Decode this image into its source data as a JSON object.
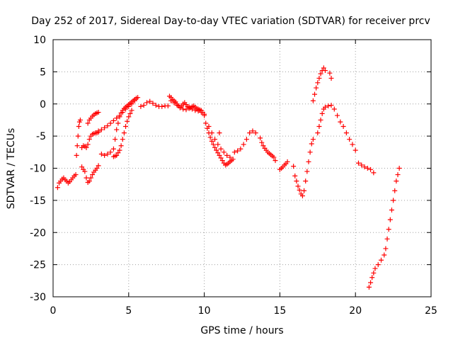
{
  "chart_data": {
    "type": "scatter",
    "title": "Day 252 of 2017, Sidereal Day-to-day VTEC variation (SDTVAR) for receiver prcv",
    "xlabel": "GPS time / hours",
    "ylabel": "SDTVAR / TECUs",
    "xlim": [
      0,
      25
    ],
    "ylim": [
      -30,
      10
    ],
    "xticks": [
      0,
      5,
      10,
      15,
      20,
      25
    ],
    "yticks": [
      -30,
      -25,
      -20,
      -15,
      -10,
      -5,
      0,
      5,
      10
    ],
    "grid": true,
    "marker": "plus",
    "series_color": "#ff0000",
    "series": [
      {
        "name": "seg1",
        "x": [
          0.3,
          0.4,
          0.5,
          0.6,
          0.7,
          0.8,
          0.9,
          1.0,
          1.1,
          1.2,
          1.3,
          1.4,
          1.5
        ],
        "y": [
          -13,
          -12.3,
          -12,
          -11.7,
          -11.5,
          -11.8,
          -12,
          -12.3,
          -12.1,
          -11.8,
          -11.5,
          -11.2,
          -11
        ]
      },
      {
        "name": "seg2",
        "x": [
          1.55,
          1.6,
          1.65,
          1.7,
          1.75,
          1.8,
          1.9,
          2.0,
          2.1,
          2.2,
          2.3,
          2.4,
          2.5,
          2.6,
          2.7,
          2.8,
          2.9,
          3.0
        ],
        "y": [
          -8,
          -6.5,
          -5,
          -3.5,
          -2.8,
          -2.5,
          -6.8,
          -6.5,
          -6.6,
          -6.8,
          -6.3,
          -5.5,
          -5,
          -4.7,
          -4.6,
          -4.5,
          -4.5,
          -4.4
        ]
      },
      {
        "name": "seg3",
        "x": [
          2.3,
          2.4,
          2.5,
          2.6,
          2.7,
          2.8,
          2.9,
          3.0
        ],
        "y": [
          -3,
          -2.5,
          -2.2,
          -1.9,
          -1.7,
          -1.5,
          -1.4,
          -1.3
        ]
      },
      {
        "name": "seg4",
        "x": [
          1.9,
          2.0,
          2.1,
          2.2,
          2.3,
          2.4,
          2.5,
          2.6,
          2.7,
          2.8,
          2.9,
          3.0
        ],
        "y": [
          -9.8,
          -10.2,
          -10.5,
          -11.5,
          -12.2,
          -12,
          -11.5,
          -11,
          -10.6,
          -10.3,
          -10,
          -9.6
        ]
      },
      {
        "name": "seg5",
        "x": [
          3.0,
          3.2,
          3.4,
          3.6,
          3.8,
          4.0,
          4.2,
          4.4,
          4.6,
          4.8,
          5.0,
          5.2,
          5.4
        ],
        "y": [
          -4.2,
          -4,
          -3.7,
          -3.4,
          -3,
          -2.6,
          -2.2,
          -1.8,
          -1.3,
          -0.8,
          -0.4,
          0,
          0.5
        ]
      },
      {
        "name": "seg6",
        "x": [
          3.2,
          3.4,
          3.6,
          3.8,
          4.0,
          4.1,
          4.2,
          4.3,
          4.4,
          4.5,
          4.6,
          4.7,
          4.8,
          4.9,
          5.0,
          5.1,
          5.2,
          5.3,
          5.4,
          5.5,
          5.6
        ],
        "y": [
          -7.8,
          -8,
          -7.8,
          -7.5,
          -7,
          -5.5,
          -4,
          -3,
          -2,
          -1.4,
          -1,
          -0.7,
          -0.5,
          -0.3,
          -0.1,
          0.1,
          0.3,
          0.5,
          0.7,
          0.9,
          1
        ]
      },
      {
        "name": "seg7",
        "x": [
          4.0,
          4.1,
          4.2,
          4.3,
          4.4,
          4.5,
          4.6,
          4.7,
          4.8,
          4.9,
          5.0,
          5.1,
          5.2
        ],
        "y": [
          -8.2,
          -8.1,
          -8,
          -7.6,
          -7.2,
          -6.5,
          -5.5,
          -4.5,
          -3.5,
          -2.7,
          -2,
          -1.5,
          -1
        ]
      },
      {
        "name": "seg8",
        "x": [
          5.8,
          6.0,
          6.2,
          6.4,
          6.6,
          6.8,
          7.0,
          7.2,
          7.4,
          7.6
        ],
        "y": [
          -0.4,
          -0.2,
          0.2,
          0.4,
          0.1,
          -0.2,
          -0.4,
          -0.4,
          -0.3,
          -0.3
        ]
      },
      {
        "name": "seg9",
        "x": [
          7.7,
          7.8,
          7.9,
          8.0,
          8.1,
          8.2,
          8.3,
          8.4,
          8.5,
          8.6,
          8.7,
          8.8,
          8.9,
          9.0,
          9.1,
          9.2,
          9.3,
          9.4,
          9.5,
          9.6,
          9.7,
          9.8,
          9.9,
          10.0
        ],
        "y": [
          1.2,
          1,
          0.7,
          0.5,
          0.3,
          0,
          -0.3,
          -0.5,
          -0.3,
          0,
          0.2,
          -0.1,
          -0.4,
          -0.5,
          -0.6,
          -0.4,
          -0.3,
          -0.5,
          -0.7,
          -0.8,
          -0.9,
          -1,
          -1.3,
          -1.6
        ]
      },
      {
        "name": "seg10",
        "x": [
          7.8,
          8.0,
          8.2,
          8.4,
          8.6,
          8.8,
          9.0,
          9.2,
          9.4,
          9.6,
          9.8,
          10.0
        ],
        "y": [
          0.5,
          0.2,
          -0.2,
          -0.6,
          -0.8,
          -0.9,
          -0.7,
          -0.8,
          -1,
          -1.1,
          -1.3,
          -1.8
        ]
      },
      {
        "name": "seg11",
        "x": [
          10.1,
          10.2,
          10.3,
          10.4,
          10.5,
          10.6,
          10.7,
          10.8,
          10.9,
          11.0,
          11.1,
          11.2,
          11.3,
          11.4,
          11.5,
          11.6,
          11.7,
          11.8
        ],
        "y": [
          -3,
          -3.8,
          -4.5,
          -5.2,
          -5.8,
          -6.3,
          -6.8,
          -7.2,
          -7.6,
          -8,
          -8.4,
          -8.8,
          -9.2,
          -9.5,
          -9.4,
          -9.2,
          -9,
          -8.8
        ]
      },
      {
        "name": "seg12",
        "x": [
          10.3,
          10.5,
          10.7,
          10.9,
          11.1,
          11.3,
          11.5,
          11.7,
          11.9
        ],
        "y": [
          -3.5,
          -4.5,
          -5.5,
          -6.3,
          -7,
          -7.5,
          -8,
          -8.3,
          -8.6
        ]
      },
      {
        "name": "seg13",
        "x": [
          11.0,
          12.0,
          12.2,
          12.4,
          12.6,
          12.8,
          13.0,
          13.2,
          13.4
        ],
        "y": [
          -4.5,
          -7.5,
          -7.3,
          -7,
          -6.3,
          -5.5,
          -4.5,
          -4.2,
          -4.5
        ]
      },
      {
        "name": "seg14",
        "x": [
          13.7,
          13.8,
          13.9,
          14.0,
          14.1,
          14.2,
          14.3,
          14.4,
          14.5,
          14.6
        ],
        "y": [
          -5.3,
          -6,
          -6.5,
          -6.9,
          -7.2,
          -7.5,
          -7.7,
          -7.9,
          -8.1,
          -8.3
        ]
      },
      {
        "name": "seg15",
        "x": [
          14.7,
          15.0,
          15.1,
          15.2,
          15.3,
          15.4,
          15.5,
          15.9
        ],
        "y": [
          -8.8,
          -10.2,
          -10,
          -9.8,
          -9.5,
          -9.3,
          -9,
          -9.7
        ]
      },
      {
        "name": "seg16",
        "x": [
          16.0,
          16.1,
          16.2,
          16.3,
          16.4,
          16.5,
          16.6,
          16.7,
          16.8,
          16.9,
          17.0,
          17.1,
          17.2
        ],
        "y": [
          -11.2,
          -12,
          -12.8,
          -13.4,
          -14,
          -14.3,
          -13.5,
          -12,
          -10.5,
          -9,
          -7.5,
          -6.2,
          -5.5
        ]
      },
      {
        "name": "seg17",
        "x": [
          17.2,
          17.3,
          17.4,
          17.5,
          17.6,
          17.7,
          17.8,
          17.9,
          18.0,
          18.3,
          18.4
        ],
        "y": [
          0.5,
          1.5,
          2.5,
          3.3,
          4,
          4.7,
          5.2,
          5.6,
          5.2,
          4.8,
          4
        ]
      },
      {
        "name": "seg18",
        "x": [
          17.5,
          17.6,
          17.7,
          17.8,
          17.9,
          18.0,
          18.2,
          18.4,
          18.6,
          18.8,
          19.0,
          19.2,
          19.4,
          19.6,
          19.8,
          20.0
        ],
        "y": [
          -4.5,
          -3.5,
          -2.5,
          -1.5,
          -0.8,
          -0.5,
          -0.3,
          -0.2,
          -0.8,
          -1.8,
          -2.8,
          -3.5,
          -4.5,
          -5.5,
          -6.3,
          -7.2
        ]
      },
      {
        "name": "seg19",
        "x": [
          20.2,
          20.4,
          20.6,
          20.8,
          21.0,
          21.2
        ],
        "y": [
          -9.2,
          -9.5,
          -9.8,
          -10,
          -10.2,
          -10.7
        ]
      },
      {
        "name": "seg20",
        "x": [
          20.9,
          21.0,
          21.1,
          21.2,
          21.3,
          21.5,
          21.7,
          21.9,
          22.0,
          22.1,
          22.2,
          22.3,
          22.4,
          22.5,
          22.6,
          22.7,
          22.8,
          22.9
        ],
        "y": [
          -28.5,
          -27.8,
          -27,
          -26.3,
          -25.6,
          -25,
          -24.3,
          -23.5,
          -22.5,
          -21,
          -19.5,
          -18,
          -16.5,
          -15,
          -13.5,
          -12,
          -11,
          -10
        ]
      }
    ]
  }
}
